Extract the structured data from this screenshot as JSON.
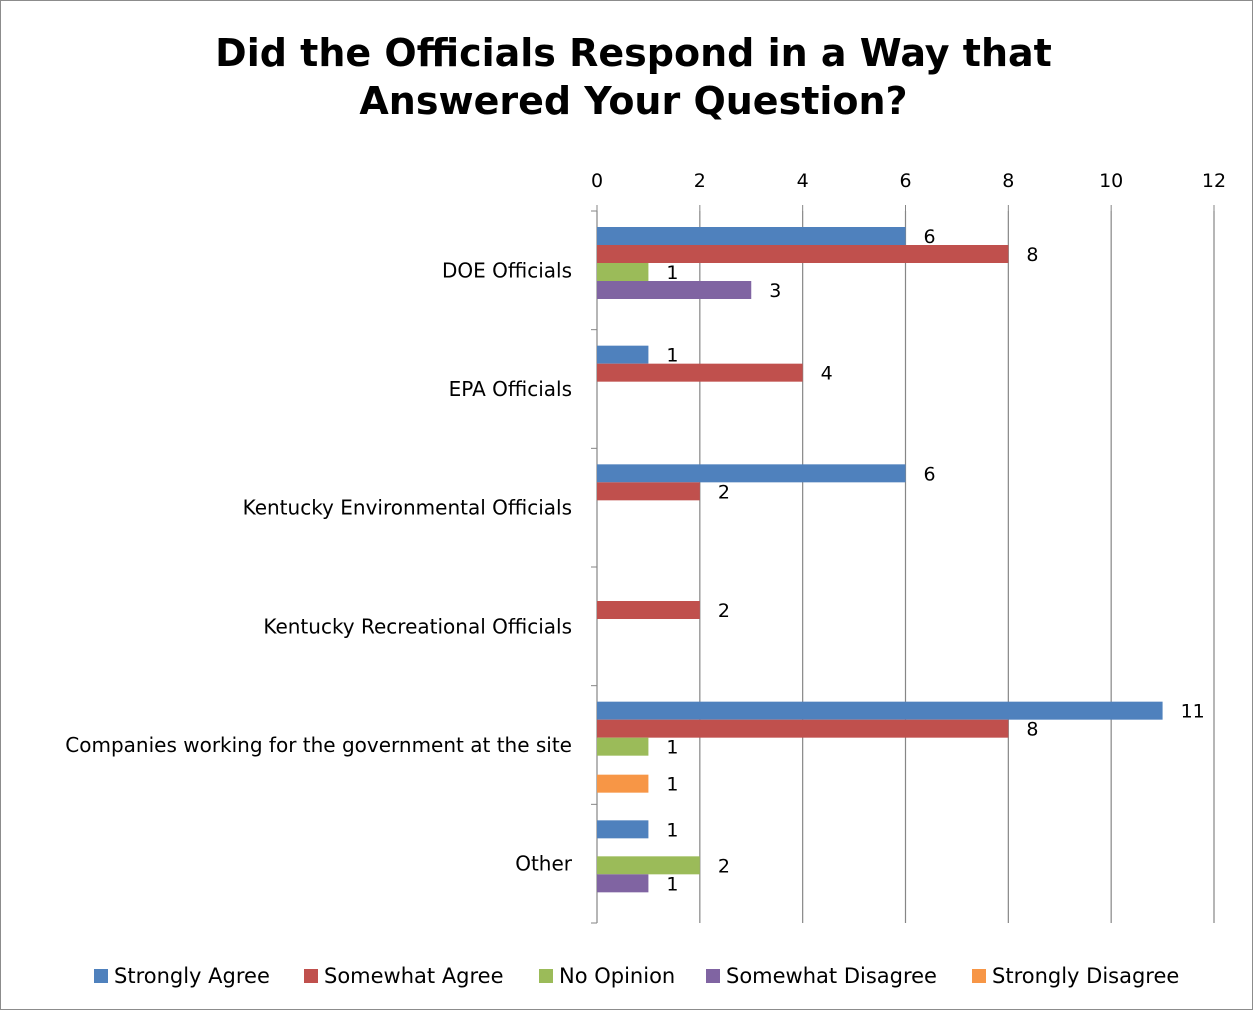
{
  "chart_data": {
    "type": "bar",
    "orientation": "horizontal",
    "title": "Did the Officials Respond in a Way that Answered Your Question?",
    "title_lines": [
      "Did the Officials Respond in a Way that",
      "Answered Your Question?"
    ],
    "categories": [
      "DOE Officials",
      "EPA Officials",
      "Kentucky Environmental Officials",
      "Kentucky Recreational Officials",
      "Companies working for the government at the site",
      "Other"
    ],
    "series": [
      {
        "name": "Strongly Agree",
        "color": "#4f81bd",
        "values": [
          6,
          1,
          6,
          null,
          11,
          1
        ]
      },
      {
        "name": "Somewhat Agree",
        "color": "#c0504d",
        "values": [
          8,
          4,
          2,
          2,
          8,
          null
        ]
      },
      {
        "name": "No Opinion",
        "color": "#9bbb59",
        "values": [
          1,
          null,
          null,
          null,
          1,
          2
        ]
      },
      {
        "name": "Somewhat Disagree",
        "color": "#8064a2",
        "values": [
          3,
          null,
          null,
          null,
          null,
          1
        ]
      },
      {
        "name": "Strongly Disagree",
        "color": "#f79646",
        "values": [
          null,
          null,
          null,
          null,
          1,
          null
        ]
      }
    ],
    "xlim": [
      0,
      12
    ],
    "x_ticks": [
      0,
      2,
      4,
      6,
      8,
      10,
      12
    ],
    "x_axis_position": "top",
    "grid": true,
    "legend_position": "bottom",
    "data_labels": true
  }
}
